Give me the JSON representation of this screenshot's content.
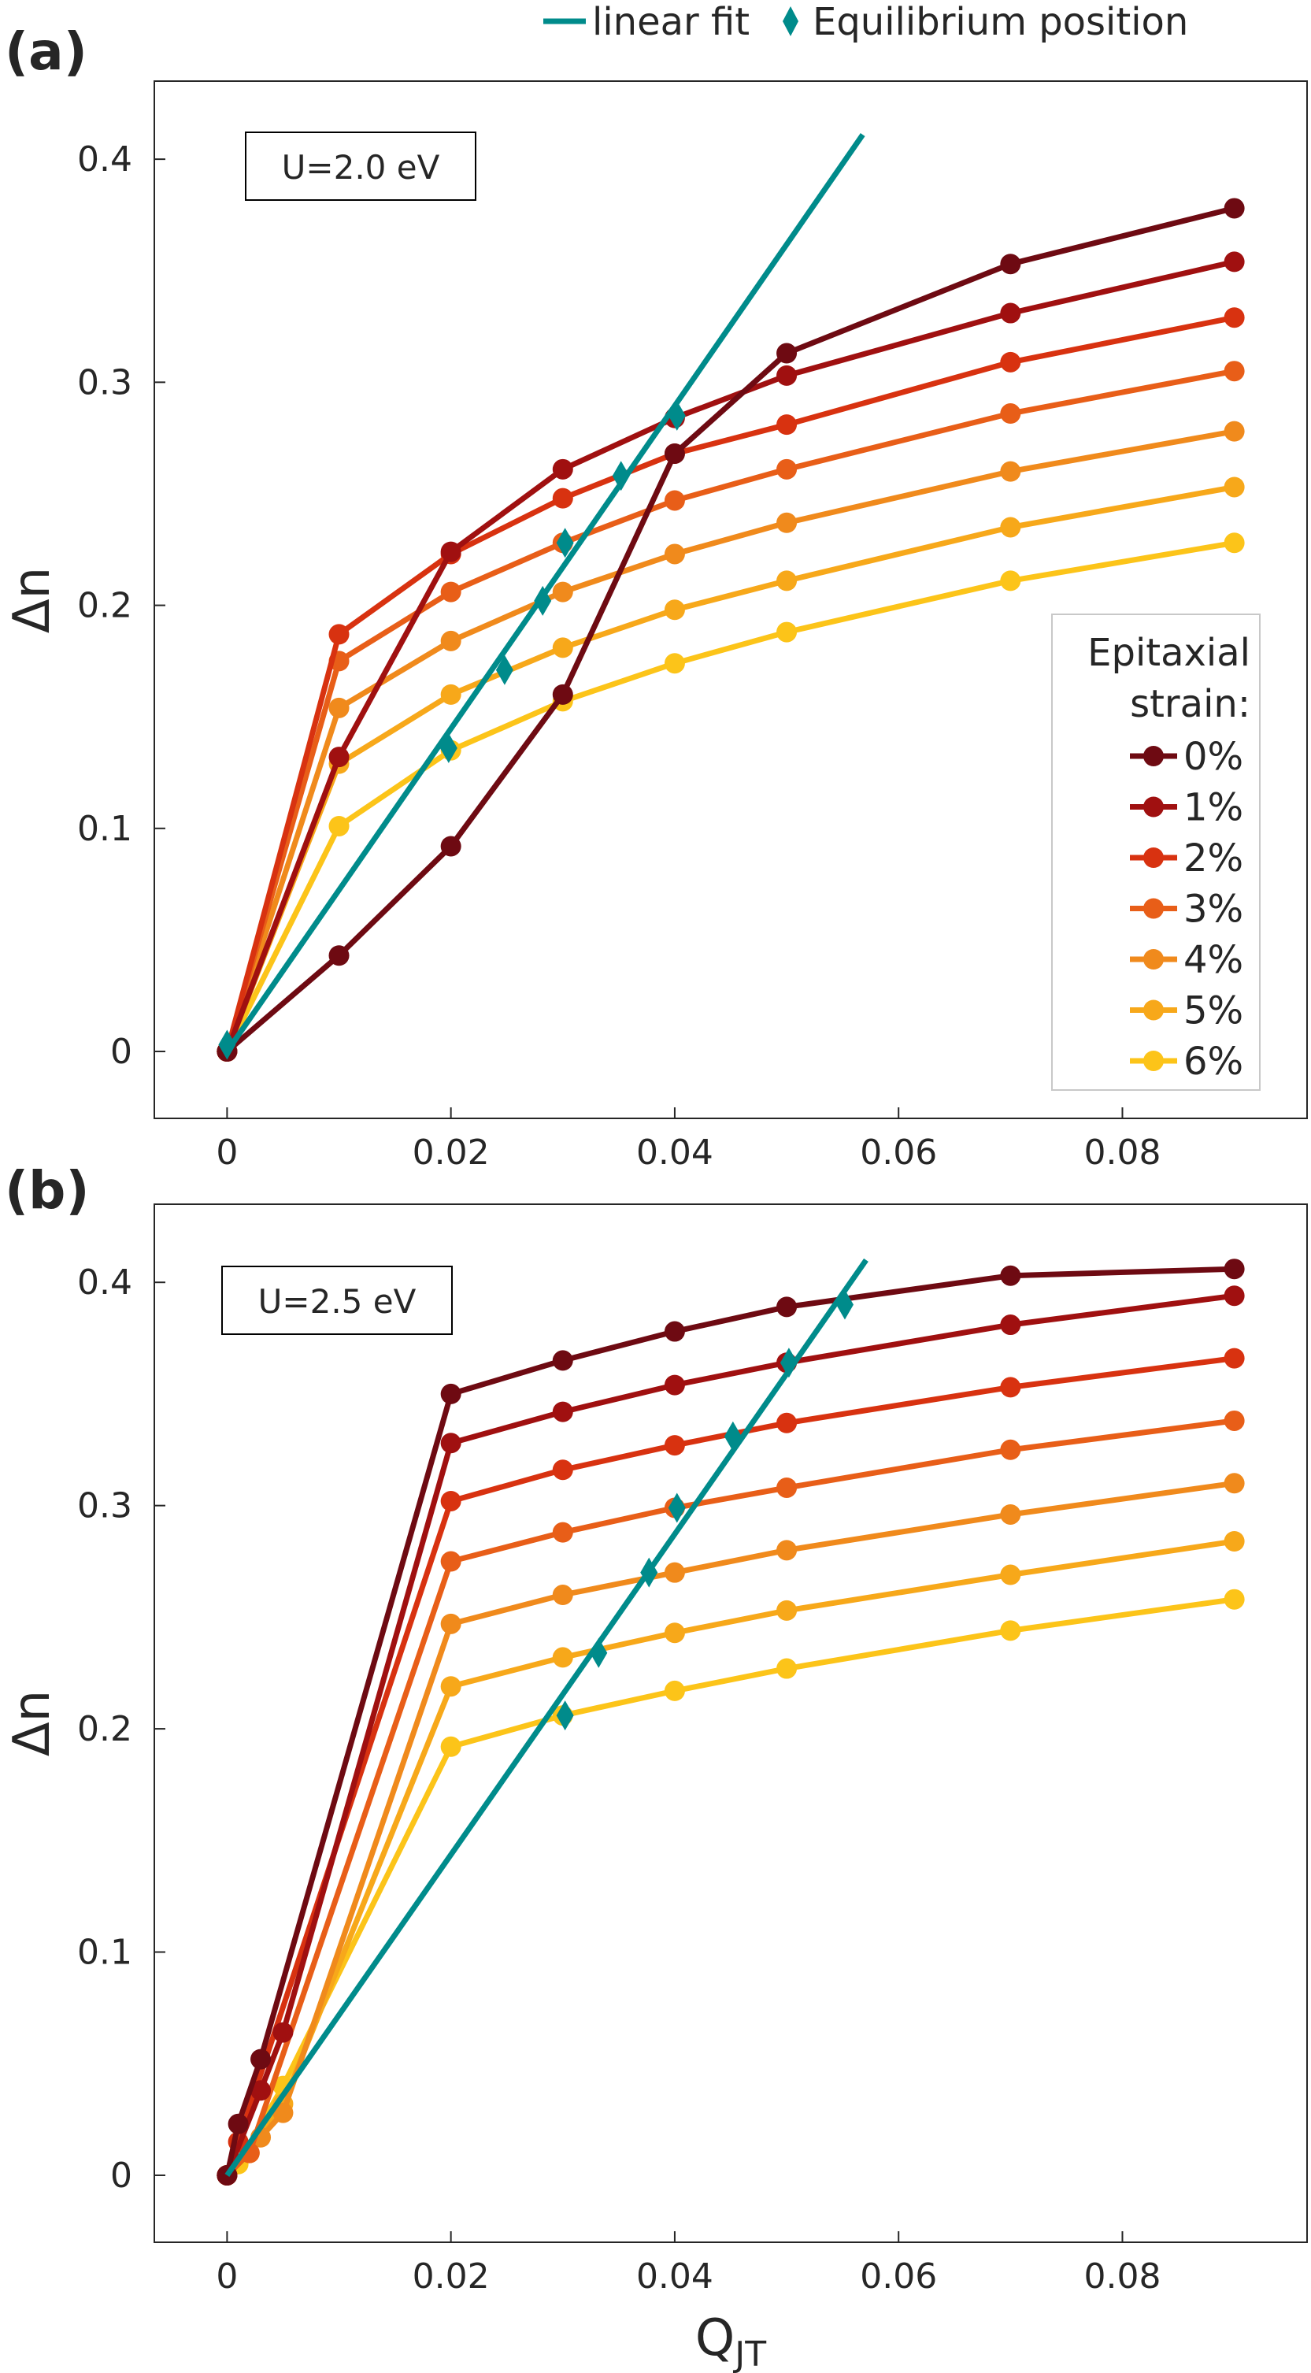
{
  "figure": {
    "legend_fit_label": "linear fit",
    "legend_eq_label": "Equilibrium position",
    "fit_color": "#008b8b",
    "xlabel_main": "Q",
    "xlabel_sub": "JT"
  },
  "chart_data": [
    {
      "type": "line",
      "panel_label": "(a)",
      "annotation": "U=2.0 eV",
      "xlabel": "Q_JT",
      "ylabel": "Δn",
      "xlim": [
        -0.0065,
        0.0965
      ],
      "ylim": [
        -0.03,
        0.435
      ],
      "xticks": [
        0,
        0.02,
        0.04,
        0.06,
        0.08
      ],
      "xtick_labels": [
        "0",
        "0.02",
        "0.04",
        "0.06",
        "0.08"
      ],
      "yticks": [
        0,
        0.1,
        0.2,
        0.3,
        0.4
      ],
      "ytick_labels": [
        "0",
        "0.1",
        "0.2",
        "0.3",
        "0.4"
      ],
      "grid": false,
      "legend_title": [
        "Epitaxial",
        "strain:"
      ],
      "legend_position": "right",
      "series": [
        {
          "name": "0%",
          "color": "#6e0a12",
          "x": [
            0,
            0.01,
            0.02,
            0.03,
            0.04,
            0.05,
            0.07,
            0.09
          ],
          "y": [
            0.0,
            0.043,
            0.092,
            0.16,
            0.268,
            0.313,
            0.353,
            0.378
          ]
        },
        {
          "name": "1%",
          "color": "#a01010",
          "x": [
            0,
            0.01,
            0.02,
            0.03,
            0.04,
            0.05,
            0.07,
            0.09
          ],
          "y": [
            0.0,
            0.132,
            0.224,
            0.261,
            0.284,
            0.303,
            0.331,
            0.354
          ]
        },
        {
          "name": "2%",
          "color": "#d83210",
          "x": [
            0,
            0.01,
            0.02,
            0.03,
            0.04,
            0.05,
            0.07,
            0.09
          ],
          "y": [
            0.0,
            0.187,
            0.223,
            0.248,
            0.268,
            0.281,
            0.309,
            0.329
          ]
        },
        {
          "name": "3%",
          "color": "#e85e18",
          "x": [
            0,
            0.01,
            0.02,
            0.03,
            0.04,
            0.05,
            0.07,
            0.09
          ],
          "y": [
            0.0,
            0.175,
            0.206,
            0.228,
            0.247,
            0.261,
            0.286,
            0.305
          ]
        },
        {
          "name": "4%",
          "color": "#f08a1c",
          "x": [
            0,
            0.01,
            0.02,
            0.03,
            0.04,
            0.05,
            0.07,
            0.09
          ],
          "y": [
            0.0,
            0.154,
            0.184,
            0.206,
            0.223,
            0.237,
            0.26,
            0.278
          ]
        },
        {
          "name": "5%",
          "color": "#f7a81a",
          "x": [
            0,
            0.01,
            0.02,
            0.03,
            0.04,
            0.05,
            0.07,
            0.09
          ],
          "y": [
            0.0,
            0.129,
            0.16,
            0.181,
            0.198,
            0.211,
            0.235,
            0.253
          ]
        },
        {
          "name": "6%",
          "color": "#fcc419",
          "x": [
            0,
            0.01,
            0.02,
            0.03,
            0.04,
            0.05,
            0.07,
            0.09
          ],
          "y": [
            0.0,
            0.101,
            0.135,
            0.157,
            0.174,
            0.188,
            0.211,
            0.228
          ]
        }
      ],
      "linear_fit": {
        "x": [
          0,
          0.0568
        ],
        "y": [
          0.0,
          0.411
        ]
      },
      "equilibrium": {
        "x": [
          0,
          0.0198,
          0.0248,
          0.0282,
          0.0302,
          0.0352,
          0.0402
        ],
        "y": [
          0.003,
          0.136,
          0.171,
          0.202,
          0.228,
          0.258,
          0.285
        ]
      }
    },
    {
      "type": "line",
      "panel_label": "(b)",
      "annotation": "U=2.5 eV",
      "xlabel": "Q_JT",
      "ylabel": "Δn",
      "xlim": [
        -0.0065,
        0.0965
      ],
      "ylim": [
        -0.03,
        0.435
      ],
      "xticks": [
        0,
        0.02,
        0.04,
        0.06,
        0.08
      ],
      "xtick_labels": [
        "0",
        "0.02",
        "0.04",
        "0.06",
        "0.08"
      ],
      "yticks": [
        0,
        0.1,
        0.2,
        0.3,
        0.4
      ],
      "ytick_labels": [
        "0",
        "0.1",
        "0.2",
        "0.3",
        "0.4"
      ],
      "grid": false,
      "series": [
        {
          "name": "0%",
          "color": "#6e0a12",
          "x": [
            0,
            0.001,
            0.003,
            0.02,
            0.03,
            0.04,
            0.05,
            0.07,
            0.09
          ],
          "y": [
            0.0,
            0.023,
            0.052,
            0.35,
            0.365,
            0.378,
            0.389,
            0.403,
            0.406
          ]
        },
        {
          "name": "1%",
          "color": "#a01010",
          "x": [
            0,
            0.003,
            0.005,
            0.02,
            0.03,
            0.04,
            0.05,
            0.07,
            0.09
          ],
          "y": [
            0.0,
            0.038,
            0.064,
            0.328,
            0.342,
            0.354,
            0.364,
            0.381,
            0.394
          ]
        },
        {
          "name": "2%",
          "color": "#d83210",
          "x": [
            0,
            0.001,
            0.02,
            0.03,
            0.04,
            0.05,
            0.07,
            0.09
          ],
          "y": [
            0.0,
            0.015,
            0.302,
            0.316,
            0.327,
            0.337,
            0.353,
            0.366
          ]
        },
        {
          "name": "3%",
          "color": "#e85e18",
          "x": [
            0,
            0.002,
            0.02,
            0.03,
            0.04,
            0.05,
            0.07,
            0.09
          ],
          "y": [
            0.0,
            0.01,
            0.275,
            0.288,
            0.299,
            0.308,
            0.325,
            0.338
          ]
        },
        {
          "name": "4%",
          "color": "#f08a1c",
          "x": [
            0,
            0.003,
            0.005,
            0.02,
            0.03,
            0.04,
            0.05,
            0.07,
            0.09
          ],
          "y": [
            0.0,
            0.017,
            0.028,
            0.247,
            0.26,
            0.27,
            0.28,
            0.296,
            0.31
          ]
        },
        {
          "name": "5%",
          "color": "#f7a81a",
          "x": [
            0,
            0.002,
            0.005,
            0.02,
            0.03,
            0.04,
            0.05,
            0.07,
            0.09
          ],
          "y": [
            0.0,
            0.01,
            0.032,
            0.219,
            0.232,
            0.243,
            0.253,
            0.269,
            0.284
          ]
        },
        {
          "name": "6%",
          "color": "#fcc419",
          "x": [
            0,
            0.001,
            0.005,
            0.02,
            0.03,
            0.04,
            0.05,
            0.07,
            0.09
          ],
          "y": [
            0.0,
            0.005,
            0.04,
            0.192,
            0.206,
            0.217,
            0.227,
            0.244,
            0.258
          ]
        }
      ],
      "linear_fit": {
        "x": [
          0,
          0.0571
        ],
        "y": [
          0.0,
          0.41
        ]
      },
      "equilibrium": {
        "x": [
          0.0302,
          0.0332,
          0.0377,
          0.0402,
          0.0452,
          0.0502,
          0.0552
        ],
        "y": [
          0.206,
          0.234,
          0.27,
          0.299,
          0.331,
          0.364,
          0.39
        ]
      }
    }
  ]
}
